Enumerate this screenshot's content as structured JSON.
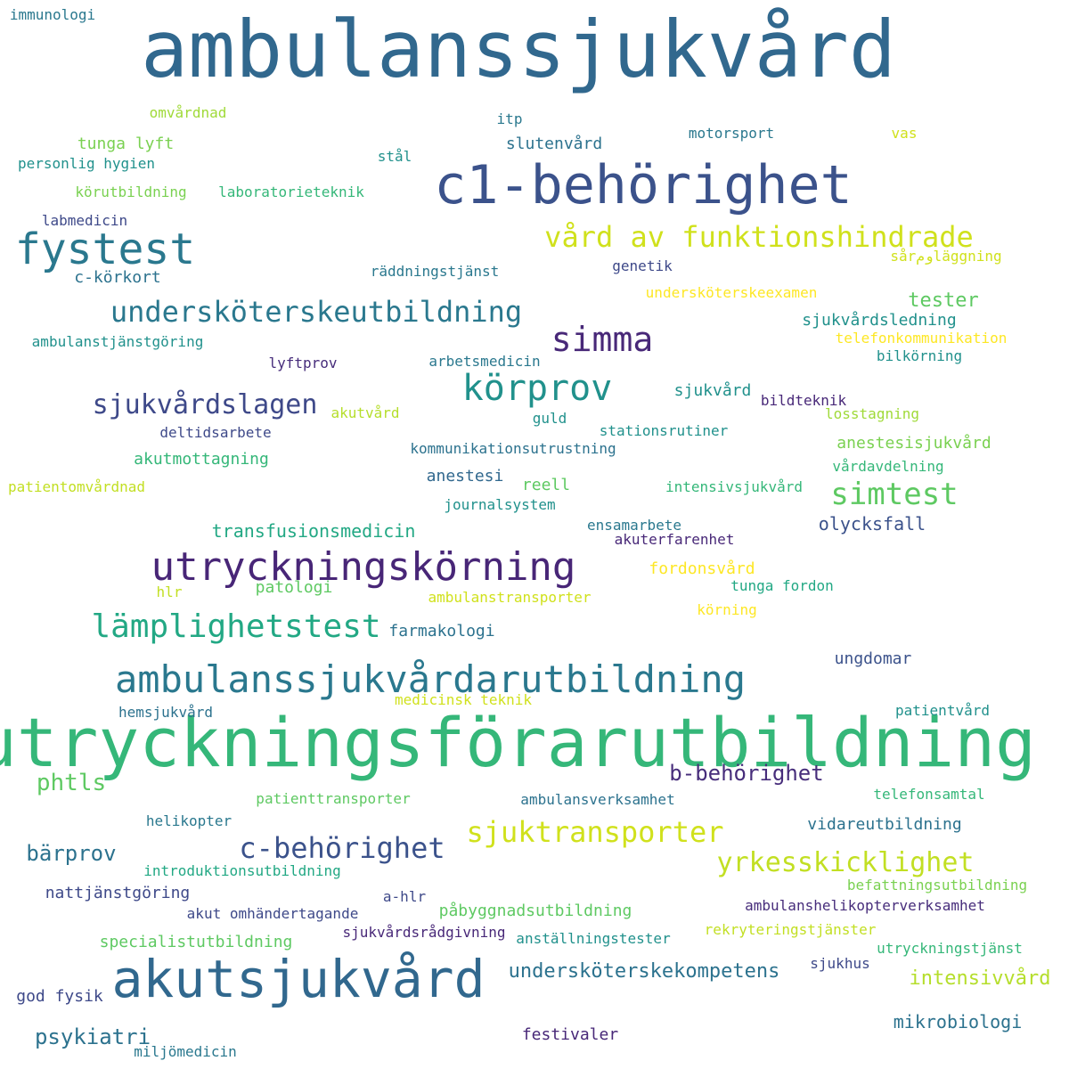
{
  "cloud": {
    "words": [
      {
        "text": "ambulanssjukvård",
        "color": "#31688e"
      },
      {
        "text": "c1-behörighet",
        "color": "#3b528b"
      },
      {
        "text": "fystest",
        "color": "#2a788e"
      },
      {
        "text": "vård av funktionshindrade",
        "color": "#d0e11c"
      },
      {
        "text": "undersköterskeutbildning",
        "color": "#2a788e"
      },
      {
        "text": "simma",
        "color": "#482878"
      },
      {
        "text": "körprov",
        "color": "#21918c"
      },
      {
        "text": "sjukvårdslagen",
        "color": "#3e4989"
      },
      {
        "text": "simtest",
        "color": "#5ec962"
      },
      {
        "text": "utryckningskörning",
        "color": "#482677"
      },
      {
        "text": "lämplighetstest",
        "color": "#22a884"
      },
      {
        "text": "ambulanssjukvårdarutbildning",
        "color": "#2a788e"
      },
      {
        "text": "utryckningsförarutbildning",
        "color": "#35b779"
      },
      {
        "text": "akutsjukvård",
        "color": "#31688e"
      },
      {
        "text": "c-behörighet",
        "color": "#3b528b"
      },
      {
        "text": "sjuktransporter",
        "color": "#d0e11c"
      },
      {
        "text": "yrkesskicklighet",
        "color": "#c2df23"
      },
      {
        "text": "b-behörighet",
        "color": "#472d7b"
      },
      {
        "text": "phtls",
        "color": "#5ec962"
      },
      {
        "text": "bärprov",
        "color": "#2c728e"
      },
      {
        "text": "psykiatri",
        "color": "#2c728e"
      },
      {
        "text": "tester",
        "color": "#5ec962"
      },
      {
        "text": "intensivvård",
        "color": "#b5de2b"
      },
      {
        "text": "undersköterskekompetens",
        "color": "#2c728e"
      },
      {
        "text": "immunologi",
        "color": "#2a788e"
      },
      {
        "text": "omvårdnad",
        "color": "#a0da39"
      },
      {
        "text": "itp",
        "color": "#2a788e"
      },
      {
        "text": "motorsport",
        "color": "#2a788e"
      },
      {
        "text": "vas",
        "color": "#d0e11c"
      },
      {
        "text": "tunga lyft",
        "color": "#7ad151"
      },
      {
        "text": "slutenvård",
        "color": "#2c728e"
      },
      {
        "text": "personlig hygien",
        "color": "#21918c"
      },
      {
        "text": "stål",
        "color": "#21918c"
      },
      {
        "text": "körutbildning",
        "color": "#7ad151"
      },
      {
        "text": "laboratorieteknik",
        "color": "#35b779"
      },
      {
        "text": "labmedicin",
        "color": "#3e4989"
      },
      {
        "text": "sårومläggning",
        "color": "#d0e11c"
      },
      {
        "text": "räddningstjänst",
        "color": "#2a788e"
      },
      {
        "text": "genetik",
        "color": "#3e4989"
      },
      {
        "text": "c-körkort",
        "color": "#2c728e"
      },
      {
        "text": "undersköterskeexamen",
        "color": "#fde725"
      },
      {
        "text": "sjukvårdsledning",
        "color": "#21918c"
      },
      {
        "text": "ambulanstjänstgöring",
        "color": "#21918c"
      },
      {
        "text": "telefonkommunikation",
        "color": "#fde725"
      },
      {
        "text": "lyftprov",
        "color": "#472d7b"
      },
      {
        "text": "arbetsmedicin",
        "color": "#2a788e"
      },
      {
        "text": "bilkörning",
        "color": "#21918c"
      },
      {
        "text": "sjukvård",
        "color": "#21918c"
      },
      {
        "text": "bildteknik",
        "color": "#482878"
      },
      {
        "text": "akutvård",
        "color": "#b5de2b"
      },
      {
        "text": "guld",
        "color": "#21918c"
      },
      {
        "text": "losstagning",
        "color": "#a0da39"
      },
      {
        "text": "deltidsarbete",
        "color": "#3e4989"
      },
      {
        "text": "stationsrutiner",
        "color": "#21918c"
      },
      {
        "text": "kommunikationsutrustning",
        "color": "#2c728e"
      },
      {
        "text": "anestesisjukvård",
        "color": "#7ad151"
      },
      {
        "text": "akutmottagning",
        "color": "#35b779"
      },
      {
        "text": "vårdavdelning",
        "color": "#35b779"
      },
      {
        "text": "anestesi",
        "color": "#31688e"
      },
      {
        "text": "patientomvårdnad",
        "color": "#c2df23"
      },
      {
        "text": "reell",
        "color": "#5ec962"
      },
      {
        "text": "intensivsjukvård",
        "color": "#35b779"
      },
      {
        "text": "journalsystem",
        "color": "#21918c"
      },
      {
        "text": "transfusionsmedicin",
        "color": "#22a884"
      },
      {
        "text": "ensamarbete",
        "color": "#2a788e"
      },
      {
        "text": "olycksfall",
        "color": "#3b528b"
      },
      {
        "text": "akuterfarenhet",
        "color": "#482878"
      },
      {
        "text": "fordonsvård",
        "color": "#fde725"
      },
      {
        "text": "hlr",
        "color": "#c2df23"
      },
      {
        "text": "patologi",
        "color": "#5ec962"
      },
      {
        "text": "tunga fordon",
        "color": "#22a884"
      },
      {
        "text": "ambulanstransporter",
        "color": "#d0e11c"
      },
      {
        "text": "körning",
        "color": "#fde725"
      },
      {
        "text": "farmakologi",
        "color": "#2c728e"
      },
      {
        "text": "ungdomar",
        "color": "#3b528b"
      },
      {
        "text": "hemsjukvård",
        "color": "#2c728e"
      },
      {
        "text": "medicinsk teknik",
        "color": "#d0e11c"
      },
      {
        "text": "patientvård",
        "color": "#21918c"
      },
      {
        "text": "patienttransporter",
        "color": "#5ec962"
      },
      {
        "text": "ambulansverksamhet",
        "color": "#2c728e"
      },
      {
        "text": "telefonsamtal",
        "color": "#35b779"
      },
      {
        "text": "helikopter",
        "color": "#2a788e"
      },
      {
        "text": "vidareutbildning",
        "color": "#2c728e"
      },
      {
        "text": "introduktionsutbildning",
        "color": "#22a884"
      },
      {
        "text": "nattjänstgöring",
        "color": "#3e4989"
      },
      {
        "text": "a-hlr",
        "color": "#3e4989"
      },
      {
        "text": "befattningsutbildning",
        "color": "#7ad151"
      },
      {
        "text": "akut omhändertagande",
        "color": "#3e4989"
      },
      {
        "text": "påbyggnadsutbildning",
        "color": "#5ec962"
      },
      {
        "text": "ambulanshelikopterverksamhet",
        "color": "#472d7b"
      },
      {
        "text": "specialistutbildning",
        "color": "#5ec962"
      },
      {
        "text": "sjukvårdsrådgivning",
        "color": "#482878"
      },
      {
        "text": "anställningstester",
        "color": "#21918c"
      },
      {
        "text": "rekryteringstjänster",
        "color": "#c2df23"
      },
      {
        "text": "utryckningstjänst",
        "color": "#35b779"
      },
      {
        "text": "sjukhus",
        "color": "#3e4989"
      },
      {
        "text": "god fysik",
        "color": "#3e4989"
      },
      {
        "text": "mikrobiologi",
        "color": "#2c728e"
      },
      {
        "text": "festivaler",
        "color": "#482878"
      },
      {
        "text": "miljömedicin",
        "color": "#2a788e"
      }
    ]
  }
}
